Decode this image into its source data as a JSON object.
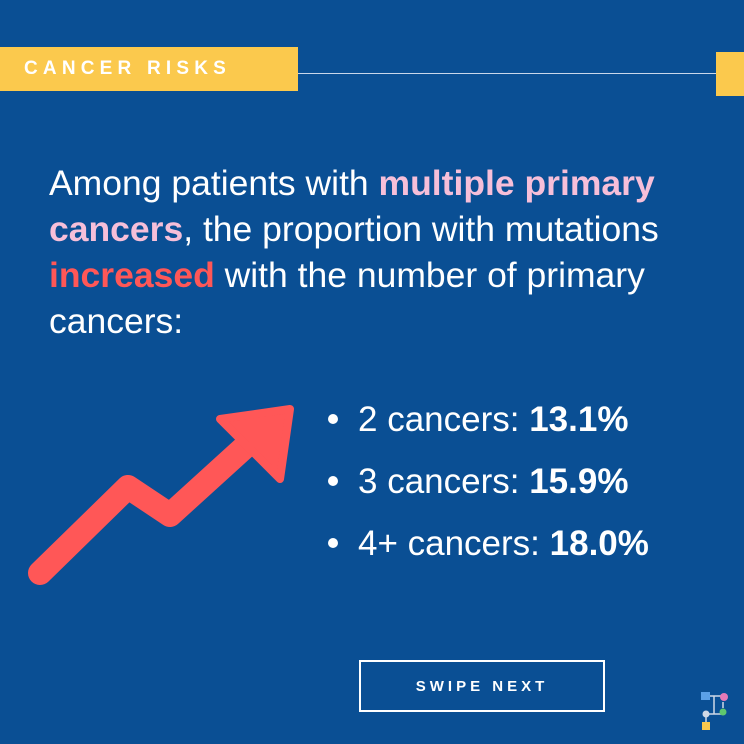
{
  "tag": {
    "label": "CANCER RISKS"
  },
  "headline": {
    "part1": "Among patients with ",
    "highlight1": "multiple primary cancers",
    "part2": ", the proportion with mutations ",
    "highlight2": "increased",
    "part3": " with the number of primary cancers:"
  },
  "bullets": [
    {
      "label": "2 cancers: ",
      "value": "13.1%"
    },
    {
      "label": "3 cancers: ",
      "value": "15.9%"
    },
    {
      "label": "4+ cancers: ",
      "value": "18.0%"
    }
  ],
  "cta": {
    "label": "SWIPE NEXT"
  },
  "icons": {
    "trend": "trend-up-arrow-icon",
    "logo": "tree-network-logo-icon"
  },
  "colors": {
    "background": "#0a4f94",
    "accent_yellow": "#fbc94d",
    "pink": "#f6bfd9",
    "red": "#ff5757",
    "text": "#ffffff"
  }
}
